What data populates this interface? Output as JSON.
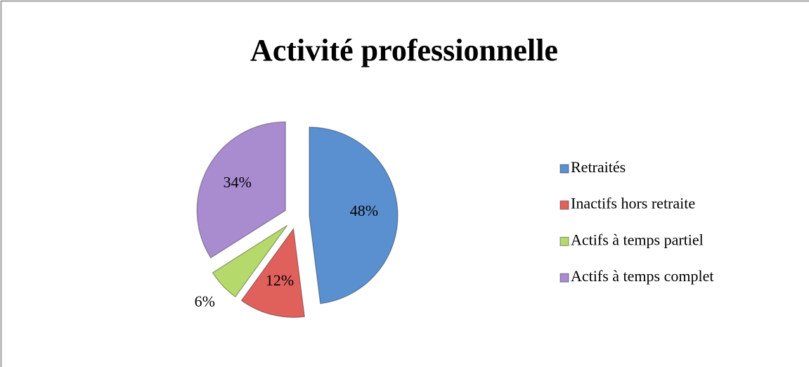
{
  "chart_data": {
    "type": "pie",
    "title": "Activité professionnelle",
    "categories": [
      "Retraités",
      "Inactifs hors retraite",
      "Actifs à temps partiel",
      "Actifs à temps complet"
    ],
    "values": [
      48,
      12,
      6,
      34
    ],
    "value_labels": [
      "48%",
      "12%",
      "6%",
      "34%"
    ],
    "colors": [
      "#5a8fd0",
      "#e0605c",
      "#b5d96a",
      "#a98bd0"
    ]
  }
}
